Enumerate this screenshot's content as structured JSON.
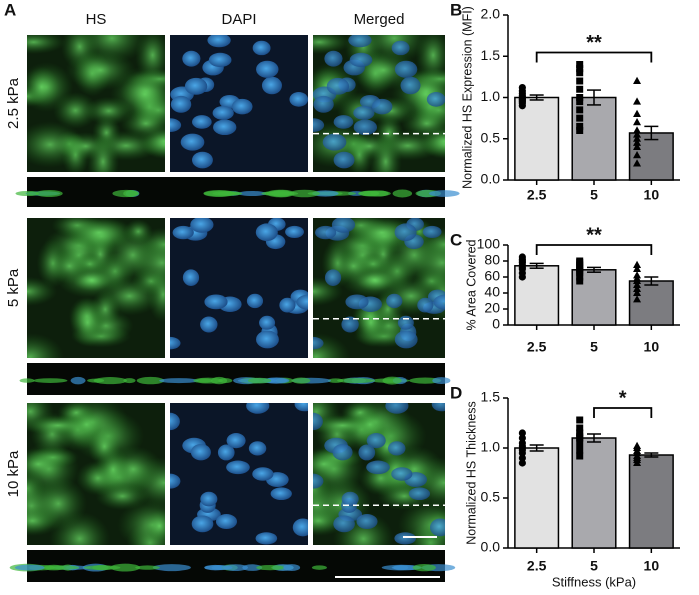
{
  "panel_a": {
    "label": "A",
    "columns": [
      "HS",
      "DAPI",
      "Merged"
    ],
    "rows": [
      "2.5 kPa",
      "5 kPa",
      "10 kPa"
    ]
  },
  "chart_data": [
    {
      "type": "bar",
      "panel": "B",
      "ylabel": "Normalized HS Expression (MFI)",
      "categories": [
        "2.5",
        "5",
        "10"
      ],
      "values": [
        1.0,
        1.0,
        0.57
      ],
      "errors": [
        0.03,
        0.09,
        0.08
      ],
      "colors": [
        "#e2e2e2",
        "#a9a9ad",
        "#7c7c80"
      ],
      "markers": [
        "circle",
        "square",
        "triangle"
      ],
      "points": [
        [
          0.9,
          0.93,
          0.95,
          0.97,
          0.98,
          1.0,
          1.0,
          1.02,
          1.05,
          1.08,
          1.12
        ],
        [
          0.6,
          0.65,
          0.75,
          0.85,
          0.95,
          1.0,
          1.1,
          1.2,
          1.3,
          1.35,
          1.4
        ],
        [
          0.2,
          0.3,
          0.4,
          0.45,
          0.5,
          0.55,
          0.6,
          0.7,
          0.8,
          0.95,
          1.2
        ]
      ],
      "ylim": [
        0,
        2
      ],
      "yticks": [
        {
          "value": 0,
          "label": "0.0"
        },
        {
          "value": 0.5,
          "label": "0.5"
        },
        {
          "value": 1,
          "label": "1.0"
        },
        {
          "value": 1.5,
          "label": "1.5"
        },
        {
          "value": 2,
          "label": "2.0"
        }
      ],
      "significance": [
        {
          "label": "**",
          "categories": [
            0,
            2
          ]
        }
      ]
    },
    {
      "type": "bar",
      "panel": "C",
      "ylabel": "% Area Covered",
      "categories": [
        "2.5",
        "5",
        "10"
      ],
      "values": [
        74,
        69,
        55
      ],
      "errors": [
        3,
        3,
        5
      ],
      "colors": [
        "#e2e2e2",
        "#a9a9ad",
        "#7c7c80"
      ],
      "markers": [
        "circle",
        "square",
        "triangle"
      ],
      "points": [
        [
          60,
          65,
          70,
          72,
          75,
          78,
          80,
          82,
          85
        ],
        [
          55,
          60,
          65,
          68,
          70,
          72,
          75,
          78,
          80
        ],
        [
          32,
          40,
          45,
          50,
          55,
          58,
          62,
          70,
          75
        ]
      ],
      "ylim": [
        0,
        100
      ],
      "yticks": [
        0,
        20,
        40,
        60,
        80,
        100
      ],
      "significance": [
        {
          "label": "**",
          "categories": [
            0,
            2
          ]
        }
      ]
    },
    {
      "type": "bar",
      "panel": "D",
      "ylabel": "Normalized HS Thickness",
      "xlabel": "Stiffness (kPa)",
      "categories": [
        "2.5",
        "5",
        "10"
      ],
      "values": [
        1.0,
        1.1,
        0.93
      ],
      "errors": [
        0.03,
        0.04,
        0.02
      ],
      "colors": [
        "#e2e2e2",
        "#a9a9ad",
        "#7c7c80"
      ],
      "markers": [
        "circle",
        "square",
        "triangle"
      ],
      "points": [
        [
          0.85,
          0.9,
          0.95,
          0.98,
          1.0,
          1.02,
          1.05,
          1.1,
          1.15
        ],
        [
          0.92,
          0.98,
          1.05,
          1.1,
          1.12,
          1.15,
          1.2,
          1.28
        ],
        [
          0.85,
          0.88,
          0.9,
          0.92,
          0.95,
          0.97,
          1.0,
          1.02
        ]
      ],
      "ylim": [
        0,
        1.5
      ],
      "yticks": [
        {
          "value": 0,
          "label": "0.0"
        },
        {
          "value": 0.5,
          "label": "0.5"
        },
        {
          "value": 1,
          "label": "1.0"
        },
        {
          "value": 1.5,
          "label": "1.5"
        }
      ],
      "significance": [
        {
          "label": "*",
          "categories": [
            1,
            2
          ]
        }
      ]
    }
  ]
}
